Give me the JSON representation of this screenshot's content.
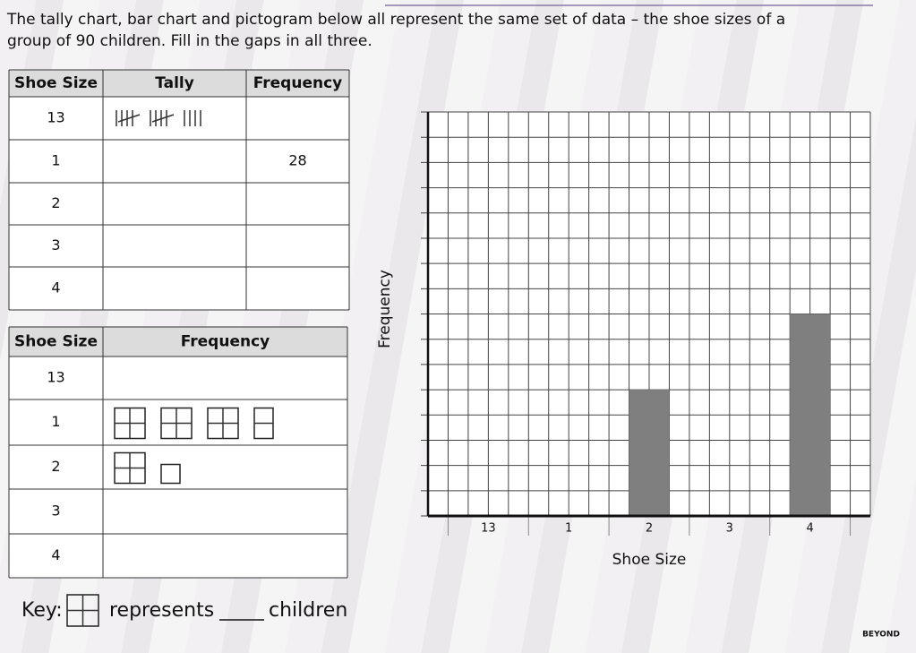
{
  "intro": [
    "The tally chart, bar chart and pictogram below all represent the same set of data – the shoe sizes of a",
    "group of 90 children. Fill in the gaps in all three."
  ],
  "tally_table": {
    "headers": [
      "Shoe Size",
      "Tally",
      "Frequency"
    ],
    "rows": [
      {
        "size": "13",
        "tally": 14
      },
      {
        "size": "1",
        "frequency": 28
      },
      {
        "size": "2"
      },
      {
        "size": "3"
      },
      {
        "size": "4"
      }
    ]
  },
  "pictogram": {
    "headers": [
      "Shoe Size",
      "Frequency"
    ],
    "rows": [
      {
        "size": "13"
      },
      {
        "size": "1",
        "symbol_quarters": [
          4,
          4,
          4,
          2
        ]
      },
      {
        "size": "2",
        "symbol_quarters": [
          4,
          1
        ]
      },
      {
        "size": "3"
      },
      {
        "size": "4"
      }
    ]
  },
  "key": {
    "label": "Key:",
    "symbol_quarters": 4,
    "text_before": "represents",
    "text_after": "children"
  },
  "brand": "BEYOND",
  "chart_data": {
    "type": "bar",
    "x_label": "Shoe Size",
    "y_label": "Frequency",
    "categories": [
      "13",
      "1",
      "2",
      "3",
      "4"
    ],
    "values": [
      null,
      null,
      5,
      null,
      8
    ],
    "color": "#7f7f7f",
    "ylim": [
      0,
      16
    ],
    "ygrid": [
      0,
      1,
      2,
      3,
      4,
      5,
      6,
      7,
      8,
      9,
      10,
      11,
      12,
      13,
      14,
      15,
      16
    ]
  }
}
